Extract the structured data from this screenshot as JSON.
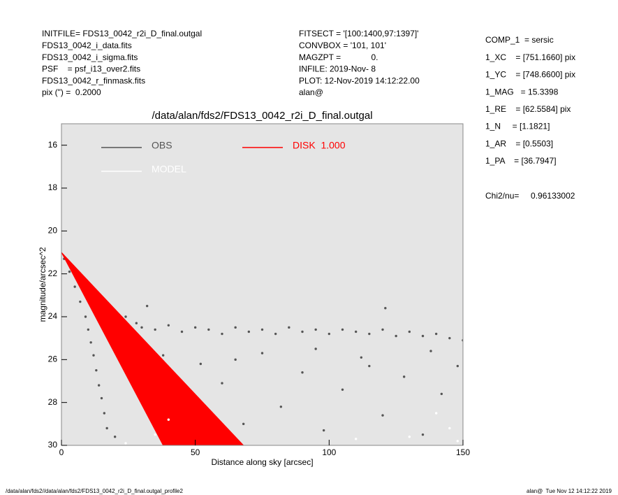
{
  "header": {
    "left": [
      "INITFILE= FDS13_0042_r2i_D_final.outgal",
      "FDS13_0042_i_data.fits",
      "FDS13_0042_i_sigma.fits",
      "PSF    = psf_i13_over2.fits",
      "FDS13_0042_r_finmask.fits",
      "pix (\") =  0.2000"
    ],
    "center": [
      "FITSECT = '[100:1400,97:1397]'",
      "CONVBOX = '101, 101'",
      "MAGZPT =             0.",
      "INFILE: 2019-Nov- 8",
      "PLOT: 12-Nov-2019 14:12:22.00",
      "alan@"
    ],
    "right": [
      "COMP_1  = sersic",
      "1_XC    = [751.1660] pix",
      "1_YC    = [748.6600] pix",
      "1_MAG   = 15.3398",
      "1_RE    = [62.5584] pix",
      "1_N     = [1.1821]",
      "1_AR    = [0.5503]",
      "1_PA    = [36.7947]"
    ],
    "chi2": "Chi2/nu=     0.96133002"
  },
  "footer": {
    "left": "/data/alan/fds2//data/alan/fds2/FDS13_0042_r2i_D_final.outgal_profile2",
    "right": "alan@  Tue Nov 12 14:12:22 2019"
  },
  "chart_data": {
    "type": "scatter",
    "title": "/data/alan/fds2/FDS13_0042_r2i_D_final.outgal",
    "x_label": "Distance along sky [arcsec]",
    "y_label": "magnitude/arcsec^2",
    "xlim": [
      0,
      150
    ],
    "ylim": [
      30,
      15
    ],
    "xticks": [
      0,
      50,
      100,
      150
    ],
    "yticks": [
      16,
      18,
      20,
      22,
      24,
      26,
      28,
      30
    ],
    "background": "#e5e5e5",
    "series": [
      {
        "name": "OBS",
        "color": "#555555",
        "x": [
          1,
          3,
          5,
          7,
          9,
          10,
          11,
          12,
          13,
          14,
          15,
          16,
          17,
          12,
          16,
          20,
          24,
          28,
          30,
          35,
          40,
          45,
          50,
          55,
          60,
          65,
          70,
          75,
          80,
          85,
          90,
          95,
          100,
          105,
          110,
          115,
          120,
          125,
          130,
          135,
          140,
          145,
          150,
          32,
          121,
          25,
          30,
          38,
          45,
          52,
          60,
          68,
          75,
          82,
          90,
          98,
          105,
          112,
          120,
          128,
          135,
          142,
          148,
          20,
          40,
          65,
          95,
          115,
          138
        ],
        "values": [
          21.3,
          21.9,
          22.6,
          23.3,
          24.0,
          24.6,
          25.2,
          25.8,
          26.5,
          27.2,
          27.8,
          28.5,
          29.2,
          23.1,
          23.4,
          23.8,
          24.0,
          24.3,
          24.5,
          24.6,
          24.4,
          24.7,
          24.5,
          24.6,
          24.8,
          24.5,
          24.7,
          24.6,
          24.8,
          24.5,
          24.7,
          24.6,
          24.8,
          24.6,
          24.7,
          24.8,
          24.6,
          24.9,
          24.7,
          24.9,
          24.8,
          25.0,
          25.1,
          23.5,
          23.6,
          26.5,
          27.5,
          25.8,
          28.8,
          26.2,
          27.1,
          29.0,
          25.7,
          28.2,
          26.6,
          29.3,
          27.4,
          25.9,
          28.6,
          26.8,
          29.5,
          27.6,
          26.3,
          29.6,
          27.0,
          26.0,
          25.5,
          26.3,
          25.6
        ]
      },
      {
        "name": "DISK  1.000",
        "color": "#ff0000",
        "fill": true,
        "x": [
          0,
          38,
          68
        ],
        "values": [
          21,
          30,
          30
        ]
      },
      {
        "name": "MODEL",
        "color": "#ffffff",
        "x": [
          35,
          40,
          110,
          140,
          145,
          148,
          24,
          130
        ],
        "values": [
          29.5,
          28.8,
          29.7,
          28.5,
          29.2,
          29.8,
          29.9,
          29.6
        ]
      }
    ]
  }
}
